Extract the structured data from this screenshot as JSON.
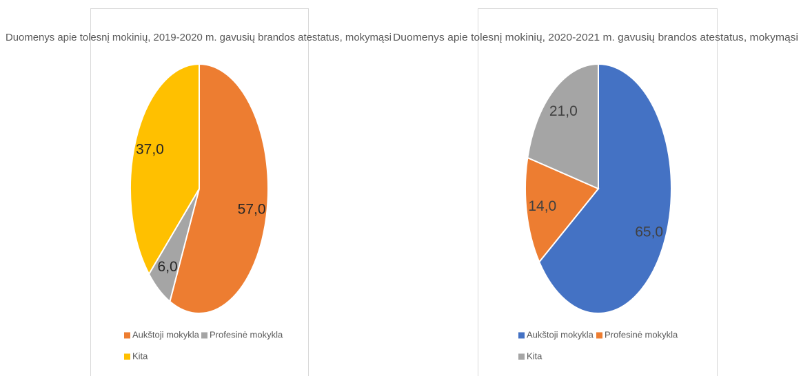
{
  "chart_data": [
    {
      "type": "pie",
      "title": "Duomenys apie tolesnį mokinių, 2019-2020 m. gavusių brandos atestatus, mokymąsi",
      "categories": [
        "Aukštoji mokykla",
        "Profesinė mokykla",
        "Kita"
      ],
      "values": [
        57,
        6,
        37
      ],
      "value_labels": [
        "57,0",
        "6,0",
        "37,0"
      ],
      "colors": [
        "#ed7d31",
        "#a5a5a5",
        "#ffc000"
      ],
      "legend": "bottom"
    },
    {
      "type": "pie",
      "title": "Duomenys apie tolesnį mokinių, 2020-2021 m. gavusių brandos atestatus, mokymąsi",
      "categories": [
        "Aukštoji mokykla",
        "Profesinė mokykla",
        "Kita"
      ],
      "values": [
        65,
        14,
        21
      ],
      "value_labels": [
        "65,0",
        "14,0",
        "21,0"
      ],
      "colors": [
        "#4472c4",
        "#ed7d31",
        "#a5a5a5"
      ],
      "legend": "bottom"
    }
  ]
}
